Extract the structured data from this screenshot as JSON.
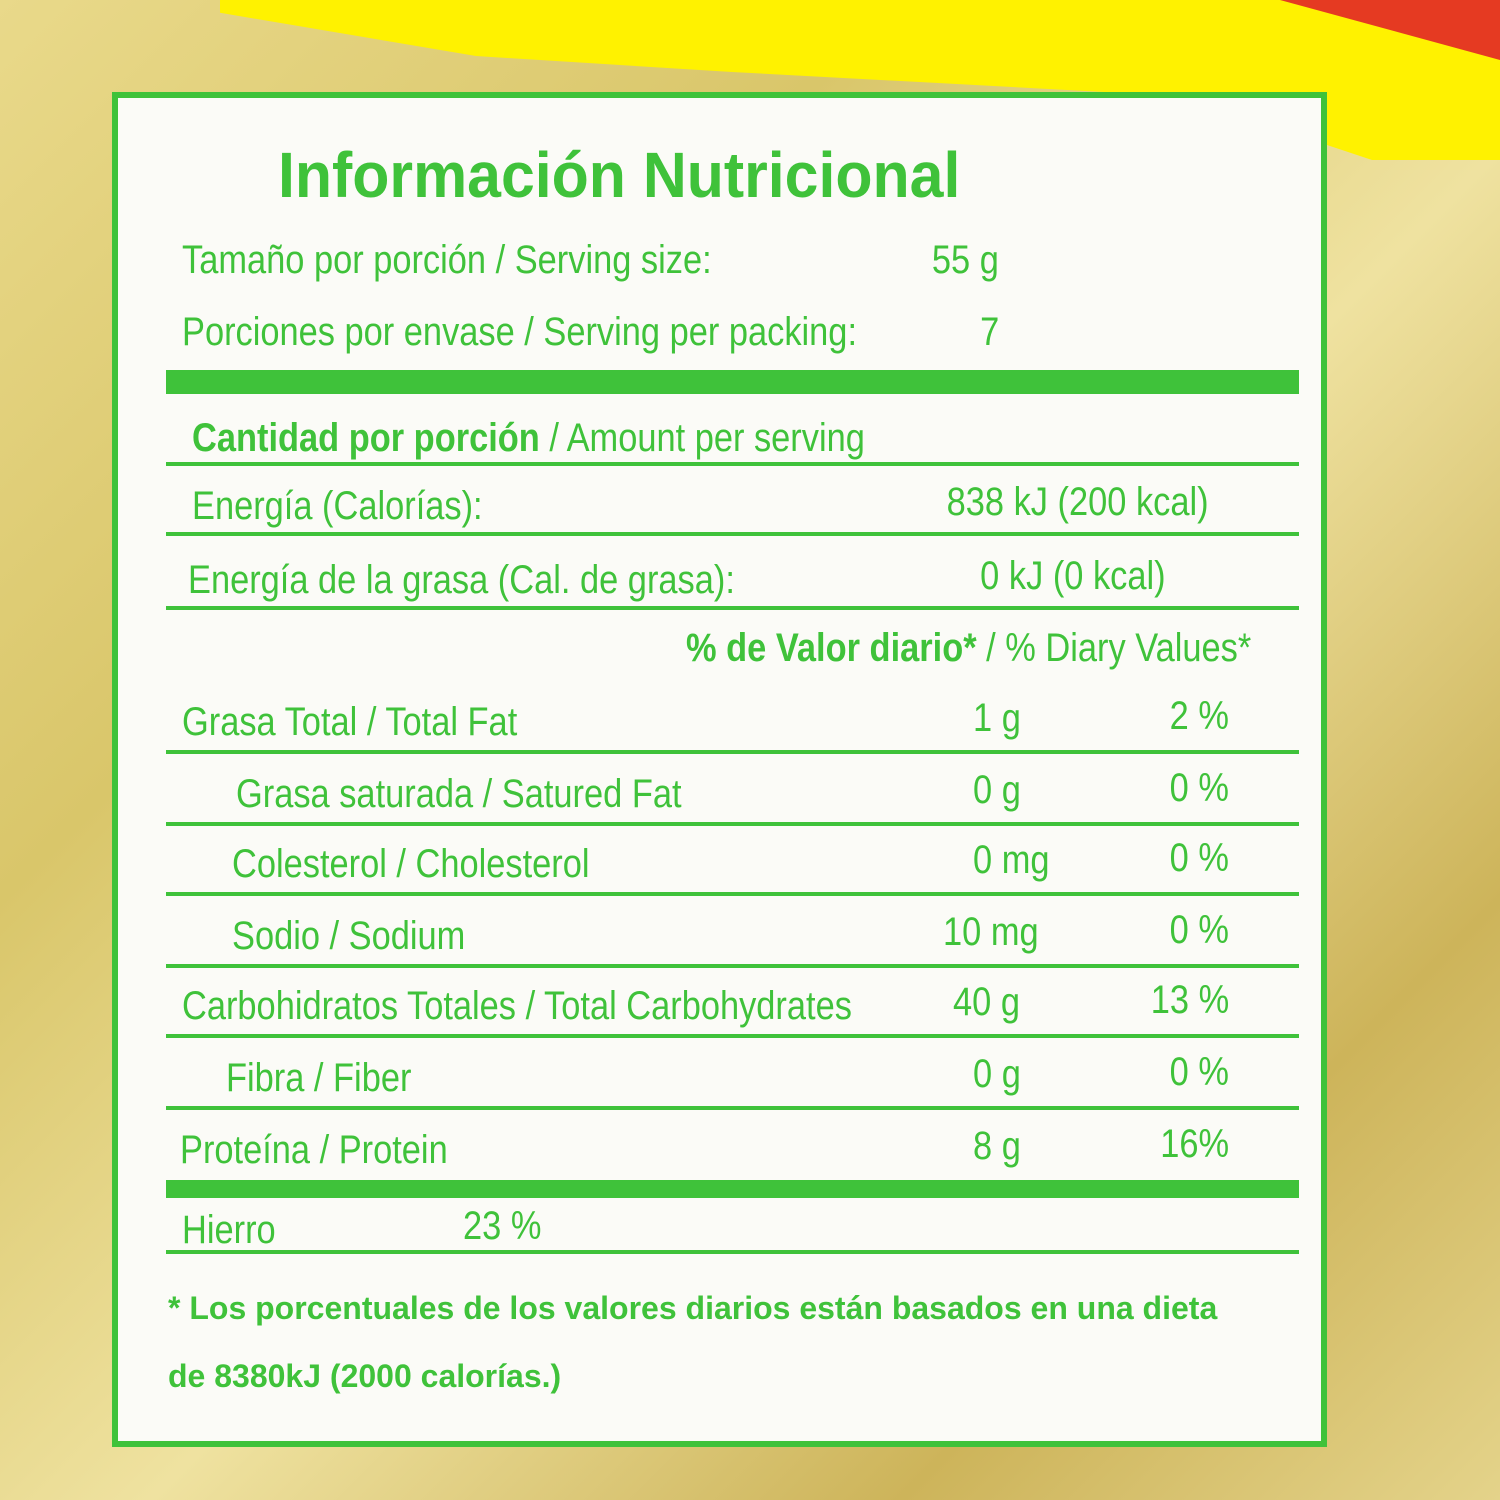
{
  "title": "Información Nutricional",
  "serving": {
    "label": "Tamaño por porción / Serving size:",
    "value": "55 g"
  },
  "servings_per": {
    "label": "Porciones por envase / Serving per packing:",
    "value": "7"
  },
  "amount_header": {
    "bold": "Cantidad por porción",
    "rest": " / Amount per serving"
  },
  "energy": {
    "label": "Energía (Calorías):",
    "value": "838 kJ  (200 kcal)"
  },
  "fat_energy": {
    "label": "Energía de la grasa (Cal. de grasa):",
    "value": "0 kJ  (0 kcal)"
  },
  "dv_header": {
    "bold": "% de Valor diario*",
    "rest": " / % Diary Values*"
  },
  "nutrients": [
    {
      "label": "Grasa Total / Total Fat",
      "amount": "1 g",
      "dv": "2 %"
    },
    {
      "label": "Grasa saturada / Satured Fat",
      "amount": "0 g",
      "dv": "0 %"
    },
    {
      "label": "Colesterol / Cholesterol",
      "amount": "0 mg",
      "dv": "0 %"
    },
    {
      "label": "Sodio / Sodium",
      "amount": "10 mg",
      "dv": "0 %"
    },
    {
      "label": "Carbohidratos Totales / Total Carbohydrates",
      "amount": "40 g",
      "dv": "13 %"
    },
    {
      "label": "Fibra / Fiber",
      "amount": "0 g",
      "dv": "0 %"
    },
    {
      "label": "Proteína / Protein",
      "amount": "8 g",
      "dv": "16%"
    }
  ],
  "iron": {
    "label": "Hierro",
    "value": "23 %"
  },
  "footnote": [
    "*  Los porcentuales de los valores diarios están basados en una dieta",
    "de 8380kJ (2000 calorías.)"
  ],
  "colors": {
    "label_green": "#3fc23a",
    "bag_yellow": "#fff200",
    "bag_red": "#e53a22"
  }
}
